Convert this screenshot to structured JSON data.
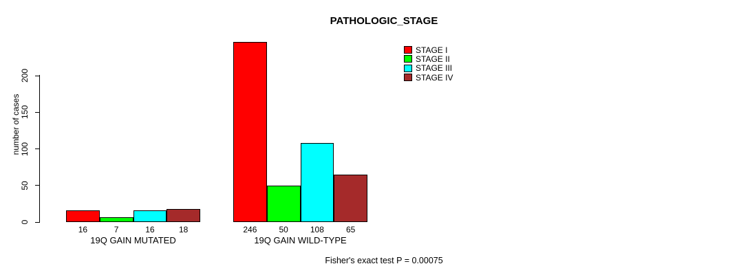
{
  "chart_data": {
    "type": "bar",
    "title": "PATHOLOGIC_STAGE",
    "ylabel": "number of cases",
    "note": "Fisher's exact test P = 0.00075",
    "categories": [
      "19Q GAIN MUTATED",
      "19Q GAIN WILD-TYPE"
    ],
    "series": [
      {
        "name": "STAGE I",
        "color": "#FF0000",
        "values": [
          16,
          246
        ]
      },
      {
        "name": "STAGE II",
        "color": "#00FF00",
        "values": [
          7,
          50
        ]
      },
      {
        "name": "STAGE III",
        "color": "#00FFFF",
        "values": [
          16,
          108
        ]
      },
      {
        "name": "STAGE IV",
        "color": "#A52A2A",
        "values": [
          18,
          65
        ]
      }
    ],
    "yticks": [
      0,
      50,
      100,
      150,
      200
    ],
    "ylim": [
      0,
      250
    ],
    "grid": false,
    "legend_position": "top-right",
    "bar_value_labels_shown": true,
    "bar_border_color": "#000000"
  }
}
